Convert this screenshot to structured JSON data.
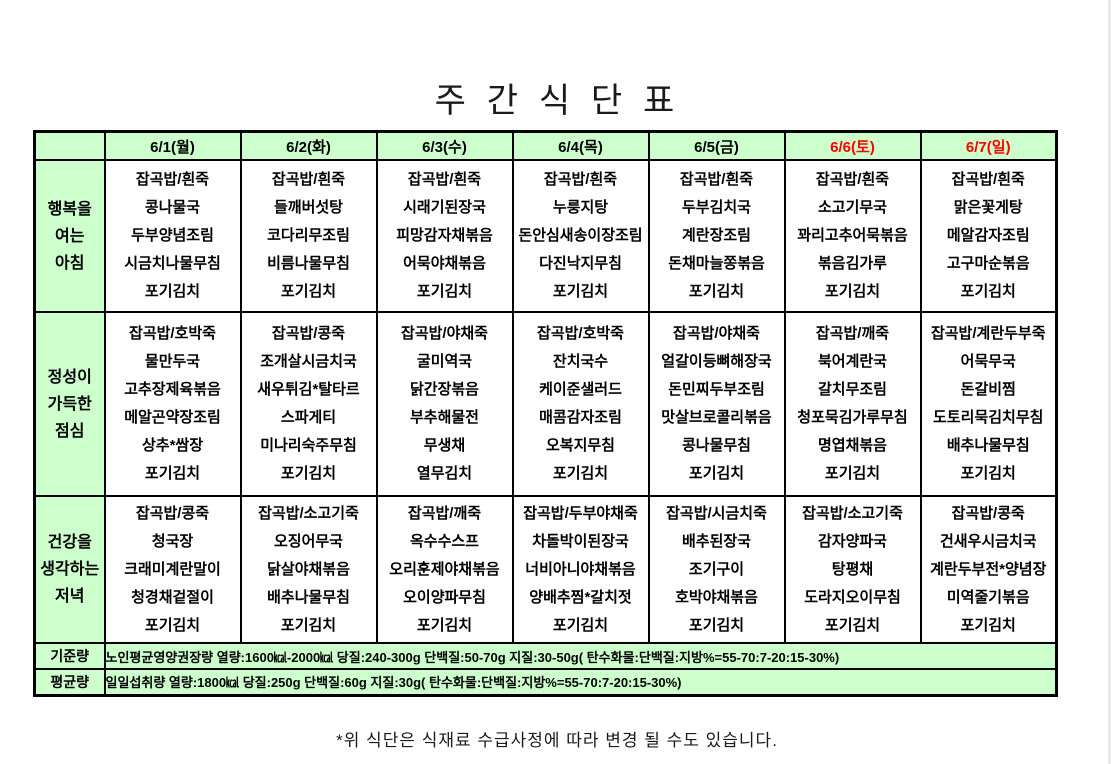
{
  "page": {
    "title": "주 간 식 단 표",
    "footer_note": "*위 식단은 식재료 수급사정에 따라 변경 될 수도 있습니다."
  },
  "colors": {
    "cell_green": "#ccffcc",
    "weekend_date_red": "#ff0000",
    "border_black": "#000000"
  },
  "table": {
    "days": [
      {
        "label": "6/1(월)",
        "weekend": false
      },
      {
        "label": "6/2(화)",
        "weekend": false
      },
      {
        "label": "6/3(수)",
        "weekend": false
      },
      {
        "label": "6/4(목)",
        "weekend": false
      },
      {
        "label": "6/5(금)",
        "weekend": false
      },
      {
        "label": "6/6(토)",
        "weekend": true
      },
      {
        "label": "6/7(일)",
        "weekend": true
      }
    ],
    "meal_rows": [
      {
        "label_lines": [
          "행복을",
          "여는",
          "아침"
        ],
        "meals": [
          [
            "잡곡밥/흰죽",
            "콩나물국",
            "두부양념조림",
            "시금치나물무침",
            "포기김치"
          ],
          [
            "잡곡밥/흰죽",
            "들깨버섯탕",
            "코다리무조림",
            "비름나물무침",
            "포기김치"
          ],
          [
            "잡곡밥/흰죽",
            "시래기된장국",
            "피망감자채볶음",
            "어묵야채볶음",
            "포기김치"
          ],
          [
            "잡곡밥/흰죽",
            "누룽지탕",
            "돈안심새송이장조림",
            "다진낙지무침",
            "포기김치"
          ],
          [
            "잡곡밥/흰죽",
            "두부김치국",
            "계란장조림",
            "돈채마늘쫑볶음",
            "포기김치"
          ],
          [
            "잡곡밥/흰죽",
            "소고기무국",
            "꽈리고추어묵볶음",
            "볶음김가루",
            "포기김치"
          ],
          [
            "잡곡밥/흰죽",
            "맑은꽃게탕",
            "메알감자조림",
            "고구마순볶음",
            "포기김치"
          ]
        ]
      },
      {
        "label_lines": [
          "정성이",
          "가득한",
          "점심"
        ],
        "meals": [
          [
            "잡곡밥/호박죽",
            "물만두국",
            "고추장제육볶음",
            "메알곤약장조림",
            "상추*쌈장",
            "포기김치"
          ],
          [
            "잡곡밥/콩죽",
            "조개살시금치국",
            "새우튀김*탈타르",
            "스파게티",
            "미나리숙주무침",
            "포기김치"
          ],
          [
            "잡곡밥/야채죽",
            "굴미역국",
            "닭간장볶음",
            "부추해물전",
            "무생채",
            "열무김치"
          ],
          [
            "잡곡밥/호박죽",
            "잔치국수",
            "케이준샐러드",
            "매콤감자조림",
            "오복지무침",
            "포기김치"
          ],
          [
            "잡곡밥/야채죽",
            "얼갈이등뼈해장국",
            "돈민찌두부조림",
            "맛살브로콜리볶음",
            "콩나물무침",
            "포기김치"
          ],
          [
            "잡곡밥/깨죽",
            "북어계란국",
            "갈치무조림",
            "청포묵김가루무침",
            "명엽채볶음",
            "포기김치"
          ],
          [
            "잡곡밥/계란두부죽",
            "어묵무국",
            "돈갈비찜",
            "도토리묵김치무침",
            "배추나물무침",
            "포기김치"
          ]
        ]
      },
      {
        "label_lines": [
          "건강을",
          "생각하는",
          "저녁"
        ],
        "meals": [
          [
            "잡곡밥/콩죽",
            "청국장",
            "크래미계란말이",
            "청경채겉절이",
            "포기김치"
          ],
          [
            "잡곡밥/소고기죽",
            "오징어무국",
            "닭살야채볶음",
            "배추나물무침",
            "포기김치"
          ],
          [
            "잡곡밥/깨죽",
            "옥수수스프",
            "오리훈제야채볶음",
            "오이양파무침",
            "포기김치"
          ],
          [
            "잡곡밥/두부야채죽",
            "차돌박이된장국",
            "너비아니야채볶음",
            "양배추찜*갈치젓",
            "포기김치"
          ],
          [
            "잡곡밥/시금치죽",
            "배추된장국",
            "조기구이",
            "호박야채볶음",
            "포기김치"
          ],
          [
            "잡곡밥/소고기죽",
            "감자양파국",
            "탕평채",
            "도라지오이무침",
            "포기김치"
          ],
          [
            "잡곡밥/콩죽",
            "건새우시금치국",
            "계란두부전*양념장",
            "미역줄기볶음",
            "포기김치"
          ]
        ]
      }
    ],
    "standards": [
      {
        "label": "기준량",
        "text": "노인평균영양권장량 열량:1600㎉-2000㎉ 당질:240-300g 단백질:50-70g 지질:30-50g( 탄수화물:단백질:지방%=55-70:7-20:15-30%)"
      },
      {
        "label": "평균량",
        "text": "일일섭취량 열량:1800㎉ 당질:250g 단백질:60g 지질:30g( 탄수화물:단백질:지방%=55-70:7-20:15-30%)"
      }
    ]
  }
}
